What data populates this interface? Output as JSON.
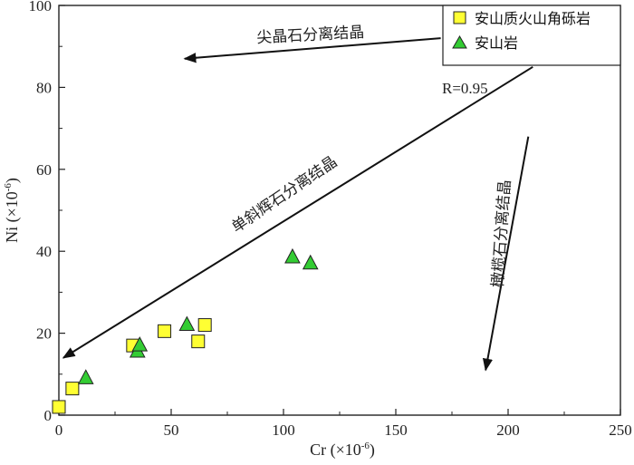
{
  "chart_data": {
    "type": "scatter",
    "title": "",
    "xlabel": "Cr (×10",
    "xlabel_sup": "-6",
    "xlabel_close": ")",
    "ylabel": "Ni (×10",
    "ylabel_sup": "-6",
    "ylabel_close": ")",
    "xlim": [
      0,
      250
    ],
    "ylim": [
      0,
      100
    ],
    "xticks": [
      0,
      50,
      100,
      150,
      200,
      250
    ],
    "yticks": [
      0,
      20,
      40,
      60,
      80,
      100
    ],
    "legend_position": "top-right",
    "series": [
      {
        "name": "安山质火山角砾岩",
        "marker": "square",
        "color": "#ffff33",
        "points": [
          {
            "x": 0,
            "y": 2
          },
          {
            "x": 6,
            "y": 6.5
          },
          {
            "x": 33,
            "y": 17
          },
          {
            "x": 47,
            "y": 20.5
          },
          {
            "x": 62,
            "y": 18
          },
          {
            "x": 65,
            "y": 22
          }
        ]
      },
      {
        "name": "安山岩",
        "marker": "triangle",
        "color": "#33cc33",
        "points": [
          {
            "x": 12,
            "y": 9
          },
          {
            "x": 35,
            "y": 15.5
          },
          {
            "x": 36,
            "y": 17
          },
          {
            "x": 57,
            "y": 22
          },
          {
            "x": 104,
            "y": 38.5
          },
          {
            "x": 112,
            "y": 37
          }
        ]
      }
    ],
    "annotations": [
      {
        "text": "尖晶石分离结晶",
        "arrow_from": {
          "x": 170,
          "y": 92
        },
        "arrow_to": {
          "x": 56,
          "y": 87
        }
      },
      {
        "text": "单斜辉石分离结晶",
        "arrow_from": {
          "x": 211,
          "y": 85
        },
        "arrow_to": {
          "x": 2,
          "y": 14
        }
      },
      {
        "text": "橄榄石分离结晶",
        "arrow_from": {
          "x": 209,
          "y": 68
        },
        "arrow_to": {
          "x": 190,
          "y": 11
        }
      },
      {
        "text": "R=0.95"
      }
    ]
  }
}
